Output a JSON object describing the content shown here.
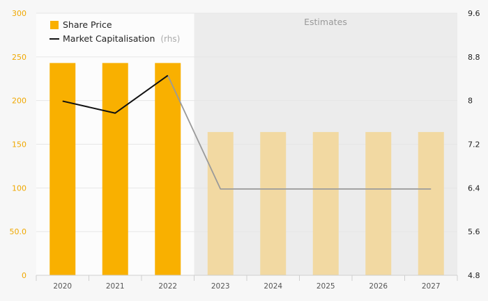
{
  "chart_data": {
    "type": "bar",
    "categories": [
      "2020",
      "2021",
      "2022",
      "2023",
      "2024",
      "2025",
      "2026",
      "2027"
    ],
    "series": [
      {
        "name": "Share Price",
        "type": "bar",
        "axis": "left",
        "values": [
          243,
          243,
          243,
          164,
          164,
          164,
          164,
          164
        ]
      },
      {
        "name": "Market Capitalisation",
        "type": "line",
        "axis": "right",
        "values": [
          7.99,
          7.77,
          8.46,
          6.38,
          6.38,
          6.38,
          6.38,
          6.38
        ]
      }
    ],
    "estimate_categories": [
      "2023",
      "2024",
      "2025",
      "2026",
      "2027"
    ],
    "shaded_region_label": "Estimates",
    "y_left": {
      "ylim": [
        0,
        300
      ],
      "ticks": [
        "0",
        "50.0",
        "100",
        "150",
        "200",
        "250",
        "300"
      ],
      "tick_values": [
        0,
        50,
        100,
        150,
        200,
        250,
        300
      ]
    },
    "y_right": {
      "ylim": [
        4.8,
        9.6
      ],
      "ticks": [
        "4.8",
        "5.6",
        "6.4",
        "7.2",
        "8",
        "8.8",
        "9.6"
      ],
      "tick_values": [
        4.8,
        5.6,
        6.4,
        7.2,
        8,
        8.8,
        9.6
      ]
    },
    "legend": {
      "placement": "top-left",
      "items": [
        {
          "label": "Share Price",
          "suffix": ""
        },
        {
          "label": "Market Capitalisation",
          "suffix": "(rhs)"
        }
      ]
    },
    "grid": true,
    "colors": {
      "bar": "#f9b000",
      "bar_estimate": "#f2d9a2",
      "line": "#111111",
      "line_estimate": "#9a9a9a",
      "estimate_background": "#ececec",
      "plot_background": "#fcfcfc",
      "page_background": "#f7f7f7",
      "grid": "#e6e6e6",
      "left_tick": "#f0a800",
      "right_tick": "#222222"
    }
  }
}
